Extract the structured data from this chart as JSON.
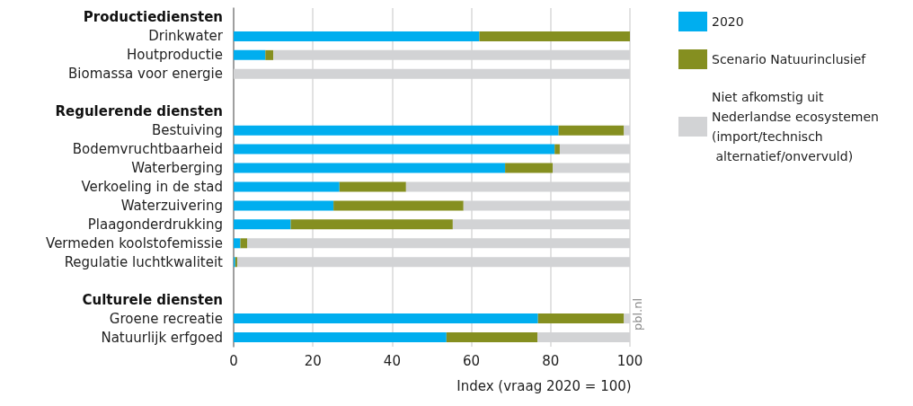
{
  "chart_data": {
    "type": "bar",
    "orientation": "horizontal",
    "stacked": true,
    "xlabel": "Index (vraag 2020 = 100)",
    "categories": [
      "Productiediensten",
      "Drinkwater",
      "Houtproductie",
      "Biomassa voor energie",
      null,
      "Regulerende diensten",
      "Bestuiving",
      "Bodemvruchtbaarheid",
      "Waterberging",
      "Verkoeling in de stad",
      "Waterzuivering",
      "Plaagonderdrukking",
      "Vermeden koolstofemissie",
      "Regulatie luchtkwaliteit",
      null,
      "Culturele diensten",
      "Groene recreatie",
      "Natuurlijk erfgoed"
    ],
    "series": [
      {
        "name": "2020",
        "color": "#00aeef",
        "values": [
          null,
          62,
          8,
          0,
          null,
          null,
          82,
          81,
          68.5,
          26.7,
          25.2,
          14.4,
          1.7,
          0.4,
          null,
          null,
          76.8,
          53.7
        ]
      },
      {
        "name": "Scenario Natuurinclusief",
        "color": "#858f20",
        "values": [
          null,
          38,
          2,
          0,
          null,
          null,
          16.5,
          1.3,
          12,
          16.8,
          32.8,
          40.9,
          1.7,
          0.5,
          null,
          null,
          21.7,
          23
        ]
      },
      {
        "name": "Niet afkomstig uit\nNederlandse ecosystemen\n(import/technisch\n alternatief/onvervuld)",
        "color": "#d2d3d5",
        "values": [
          null,
          0,
          90,
          100,
          null,
          null,
          1.5,
          17.7,
          19.5,
          56.5,
          42,
          44.7,
          96.6,
          99.1,
          null,
          null,
          1.5,
          23.3
        ]
      }
    ],
    "xlim": [
      0,
      100
    ],
    "xticks": [
      0,
      20,
      40,
      60,
      80,
      100
    ],
    "grid": "x",
    "legend": "top right",
    "annotations": [
      "pbl.nl"
    ]
  }
}
